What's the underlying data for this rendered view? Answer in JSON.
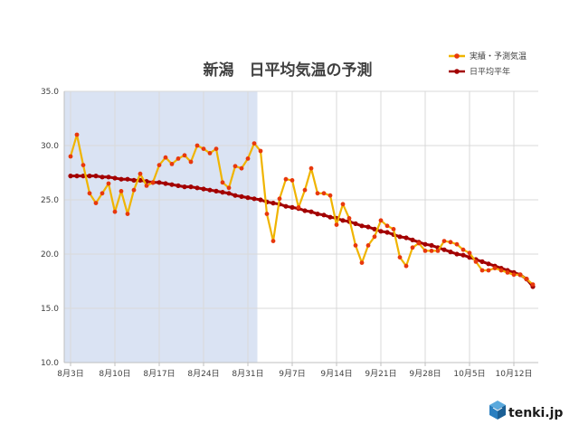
{
  "chart_data": {
    "type": "line",
    "title": "新潟　日平均気温の予測",
    "xlabel": "",
    "ylabel": "",
    "ylim": [
      10.0,
      35.0
    ],
    "y_ticks": [
      "10.0",
      "15.0",
      "20.0",
      "25.0",
      "30.0",
      "35.0"
    ],
    "x_start": "8月3日",
    "x_ticks": [
      {
        "day": 0,
        "label": "8月3日"
      },
      {
        "day": 7,
        "label": "8月10日"
      },
      {
        "day": 14,
        "label": "8月17日"
      },
      {
        "day": 21,
        "label": "8月24日"
      },
      {
        "day": 28,
        "label": "8月31日"
      },
      {
        "day": 35,
        "label": "9月7日"
      },
      {
        "day": 42,
        "label": "9月14日"
      },
      {
        "day": 49,
        "label": "9月21日"
      },
      {
        "day": 56,
        "label": "9月28日"
      },
      {
        "day": 63,
        "label": "10月5日"
      },
      {
        "day": 70,
        "label": "10月12日"
      }
    ],
    "shaded_range": {
      "from_day": 0,
      "to_day": 29.5,
      "color": "#dae3f3"
    },
    "grid": true,
    "legend_position": "top-right",
    "series": [
      {
        "name": "実績・予測気温",
        "line_color": "#f0b400",
        "marker_color": "#e8380d",
        "values": [
          29.0,
          31.0,
          28.2,
          25.6,
          24.7,
          25.6,
          26.5,
          23.9,
          25.8,
          23.7,
          25.9,
          27.4,
          26.3,
          26.6,
          28.2,
          28.9,
          28.3,
          28.8,
          29.1,
          28.5,
          30.0,
          29.7,
          29.3,
          29.7,
          26.6,
          26.1,
          28.1,
          27.9,
          28.8,
          30.2,
          29.5,
          23.7,
          21.2,
          25.1,
          26.9,
          26.8,
          24.3,
          25.9,
          27.9,
          25.6,
          25.6,
          25.4,
          22.7,
          24.6,
          23.3,
          20.8,
          19.2,
          20.8,
          21.6,
          23.1,
          22.6,
          22.3,
          19.7,
          18.9,
          20.6,
          21.0,
          20.3,
          20.3,
          20.3,
          21.2,
          21.1,
          20.9,
          20.4,
          20.1,
          19.3,
          18.5,
          18.5,
          18.7,
          18.5,
          18.3,
          18.1,
          18.1,
          17.7,
          17.2
        ]
      },
      {
        "name": "日平均平年",
        "line_color": "#a30000",
        "marker_color": "#a30000",
        "values": [
          27.2,
          27.2,
          27.2,
          27.2,
          27.2,
          27.1,
          27.1,
          27.0,
          26.9,
          26.9,
          26.8,
          26.8,
          26.7,
          26.6,
          26.6,
          26.5,
          26.4,
          26.3,
          26.2,
          26.2,
          26.1,
          26.0,
          25.9,
          25.8,
          25.7,
          25.6,
          25.4,
          25.3,
          25.2,
          25.1,
          25.0,
          24.8,
          24.7,
          24.6,
          24.4,
          24.3,
          24.2,
          24.0,
          23.9,
          23.7,
          23.6,
          23.4,
          23.3,
          23.1,
          23.0,
          22.8,
          22.6,
          22.5,
          22.3,
          22.1,
          22.0,
          21.8,
          21.6,
          21.5,
          21.3,
          21.1,
          20.9,
          20.8,
          20.6,
          20.4,
          20.2,
          20.0,
          19.9,
          19.7,
          19.5,
          19.3,
          19.1,
          18.9,
          18.7,
          18.5,
          18.3,
          18.1,
          17.7,
          17.0
        ]
      }
    ]
  },
  "branding": {
    "logo_text": "tenki.jp"
  }
}
